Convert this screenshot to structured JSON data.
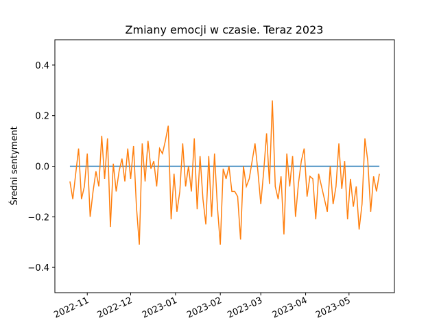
{
  "chart_data": {
    "type": "line",
    "title": "Zmiany emocji w czasie. Teraz 2023",
    "y_label": "Średni sentyment",
    "xlim": [
      19274.6,
      19509.4
    ],
    "ylim": [
      -0.5,
      0.5
    ],
    "xticks": [
      {
        "value": 19297,
        "label": "2022-11"
      },
      {
        "value": 19327,
        "label": "2022-12"
      },
      {
        "value": 19358,
        "label": "2023-01"
      },
      {
        "value": 19389,
        "label": "2023-02"
      },
      {
        "value": 19417,
        "label": "2023-03"
      },
      {
        "value": 19448,
        "label": "2023-04"
      },
      {
        "value": 19478,
        "label": "2023-05"
      }
    ],
    "yticks": [
      {
        "value": -0.4,
        "label": "−0.4"
      },
      {
        "value": -0.2,
        "label": "−0.2"
      },
      {
        "value": 0,
        "label": "0.0"
      },
      0.2,
      0.4
    ],
    "series": [
      {
        "color": "#1f77b4",
        "x": [
          19285,
          19499
        ],
        "values": [
          0,
          0
        ]
      },
      {
        "color": "#ff7f0e",
        "x": [
          19285,
          19287,
          19289,
          19291,
          19293,
          19295,
          19297,
          19299,
          19301,
          19303,
          19305,
          19307,
          19309,
          19311,
          19313,
          19315,
          19317,
          19319,
          19321,
          19323,
          19325,
          19327,
          19329,
          19331,
          19333,
          19335,
          19337,
          19339,
          19341,
          19343,
          19345,
          19347,
          19349,
          19351,
          19353,
          19355,
          19357,
          19359,
          19361,
          19363,
          19365,
          19367,
          19369,
          19371,
          19373,
          19375,
          19377,
          19379,
          19381,
          19383,
          19385,
          19387,
          19389,
          19391,
          19393,
          19395,
          19397,
          19399,
          19401,
          19403,
          19405,
          19407,
          19409,
          19411,
          19413,
          19415,
          19417,
          19419,
          19421,
          19423,
          19425,
          19427,
          19429,
          19431,
          19433,
          19435,
          19437,
          19439,
          19441,
          19443,
          19445,
          19447,
          19449,
          19451,
          19453,
          19455,
          19457,
          19459,
          19461,
          19463,
          19465,
          19467,
          19469,
          19471,
          19473,
          19475,
          19477,
          19479,
          19481,
          19483,
          19485,
          19487,
          19489,
          19491,
          19493,
          19495,
          19497,
          19499
        ],
        "values": [
          -0.06,
          -0.13,
          -0.03,
          0.07,
          -0.13,
          -0.08,
          0.05,
          -0.2,
          -0.1,
          -0.02,
          -0.08,
          0.12,
          -0.05,
          0.11,
          -0.24,
          0.01,
          -0.1,
          -0.02,
          0.03,
          -0.06,
          0.07,
          -0.05,
          0.08,
          -0.16,
          -0.31,
          0.09,
          -0.06,
          0.1,
          -0.01,
          0.02,
          -0.08,
          0.07,
          0.05,
          0.1,
          0.16,
          -0.21,
          -0.03,
          -0.18,
          -0.1,
          0.09,
          -0.08,
          0.0,
          -0.1,
          0.11,
          -0.17,
          0.04,
          -0.13,
          -0.23,
          0.04,
          -0.2,
          0.05,
          -0.16,
          -0.31,
          -0.01,
          -0.05,
          0.0,
          -0.1,
          -0.1,
          -0.12,
          -0.29,
          0.0,
          -0.08,
          -0.05,
          0.02,
          0.09,
          -0.02,
          -0.15,
          -0.02,
          0.13,
          -0.07,
          0.26,
          -0.08,
          -0.13,
          -0.04,
          -0.27,
          0.05,
          -0.08,
          0.04,
          -0.2,
          -0.07,
          0.02,
          0.07,
          -0.12,
          -0.04,
          -0.05,
          -0.21,
          -0.03,
          -0.08,
          -0.13,
          -0.18,
          0.0,
          -0.15,
          -0.08,
          0.09,
          -0.09,
          0.02,
          -0.21,
          -0.05,
          -0.16,
          -0.08,
          -0.25,
          -0.15,
          0.11,
          0.02,
          -0.18,
          -0.04,
          -0.1,
          -0.03
        ]
      }
    ]
  }
}
